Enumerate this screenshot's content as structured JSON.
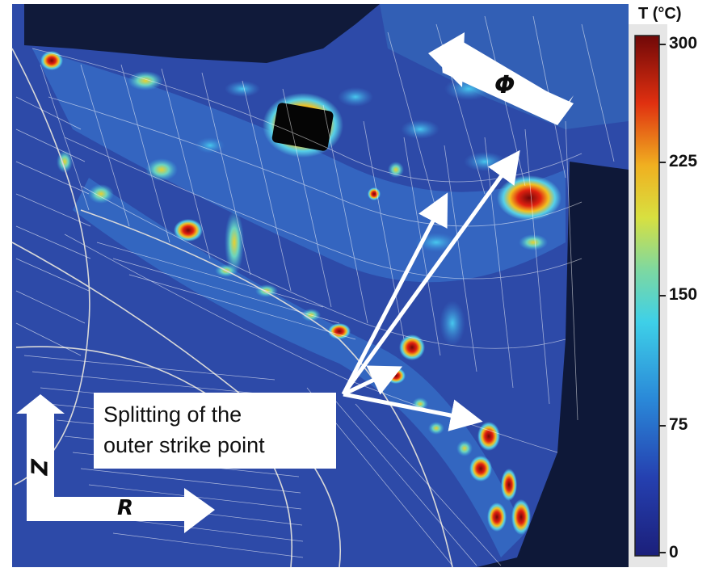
{
  "colorbar": {
    "title": "T (°C)",
    "ticks": [
      "300",
      "225",
      "150",
      "75",
      "0"
    ],
    "min": 0,
    "max": 300
  },
  "annotation": {
    "line1": "Splitting of the",
    "line2": "outer strike point"
  },
  "axes": {
    "z_label": "Z",
    "r_label": "R",
    "phi_label": "Φ"
  },
  "colors": {
    "background_blue": "#2d4aa8",
    "dark_structure": "#0e1838",
    "hot_red": "#b01010",
    "mesh_white": "#ffffff"
  }
}
